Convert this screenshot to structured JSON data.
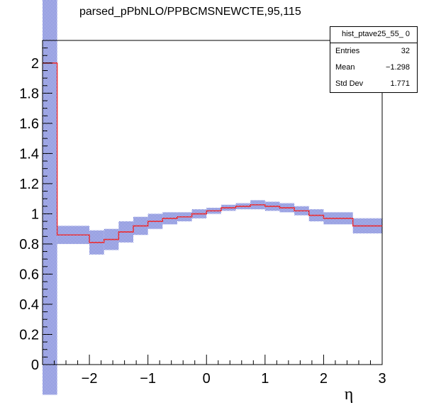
{
  "chart_data": {
    "type": "histogram",
    "title": "parsed_pPbNLO/PPBCMSNEWCTE,95,115",
    "xlabel": "η",
    "ylabel": "",
    "xlim": [
      -2.8,
      3.0
    ],
    "ylim": [
      0,
      2.15
    ],
    "x_ticks": [
      -2,
      -1,
      0,
      1,
      2,
      3
    ],
    "x_tick_labels": [
      "−2",
      "−1",
      "0",
      "1",
      "2",
      "3"
    ],
    "y_ticks": [
      0,
      0.2,
      0.4,
      0.6,
      0.8,
      1,
      1.2,
      1.4,
      1.6,
      1.8,
      2
    ],
    "y_tick_labels": [
      "0",
      "0.2",
      "0.4",
      "0.6",
      "0.8",
      "1",
      "1.2",
      "1.4",
      "1.6",
      "1.8",
      "2"
    ],
    "bins": [
      {
        "lo": -2.8,
        "hi": -2.55,
        "y": 2.0,
        "err": 2.2
      },
      {
        "lo": -2.55,
        "hi": -2.0,
        "y": 0.86,
        "err": 0.06
      },
      {
        "lo": -2.0,
        "hi": -1.75,
        "y": 0.81,
        "err": 0.08
      },
      {
        "lo": -1.75,
        "hi": -1.5,
        "y": 0.83,
        "err": 0.07
      },
      {
        "lo": -1.5,
        "hi": -1.25,
        "y": 0.88,
        "err": 0.07
      },
      {
        "lo": -1.25,
        "hi": -1.0,
        "y": 0.92,
        "err": 0.06
      },
      {
        "lo": -1.0,
        "hi": -0.75,
        "y": 0.95,
        "err": 0.05
      },
      {
        "lo": -0.75,
        "hi": -0.5,
        "y": 0.97,
        "err": 0.04
      },
      {
        "lo": -0.5,
        "hi": -0.25,
        "y": 0.98,
        "err": 0.03
      },
      {
        "lo": -0.25,
        "hi": 0.0,
        "y": 1.0,
        "err": 0.03
      },
      {
        "lo": 0.0,
        "hi": 0.25,
        "y": 1.02,
        "err": 0.02
      },
      {
        "lo": 0.25,
        "hi": 0.5,
        "y": 1.04,
        "err": 0.02
      },
      {
        "lo": 0.5,
        "hi": 0.75,
        "y": 1.05,
        "err": 0.02
      },
      {
        "lo": 0.75,
        "hi": 1.0,
        "y": 1.06,
        "err": 0.03
      },
      {
        "lo": 1.0,
        "hi": 1.25,
        "y": 1.05,
        "err": 0.03
      },
      {
        "lo": 1.25,
        "hi": 1.5,
        "y": 1.04,
        "err": 0.03
      },
      {
        "lo": 1.5,
        "hi": 1.75,
        "y": 1.02,
        "err": 0.03
      },
      {
        "lo": 1.75,
        "hi": 2.0,
        "y": 0.99,
        "err": 0.04
      },
      {
        "lo": 2.0,
        "hi": 2.5,
        "y": 0.97,
        "err": 0.04
      },
      {
        "lo": 2.5,
        "hi": 3.0,
        "y": 0.92,
        "err": 0.05
      }
    ],
    "stats": {
      "name": "hist_ptave25_55_ 0",
      "rows": [
        {
          "label": "Entries",
          "value": "32"
        },
        {
          "label": "Mean",
          "value": "−1.298"
        },
        {
          "label": "Std Dev",
          "value": "1.771"
        }
      ]
    },
    "colors": {
      "line": "#e8333a",
      "band": "#1a2dbf",
      "axis": "#000000"
    }
  }
}
